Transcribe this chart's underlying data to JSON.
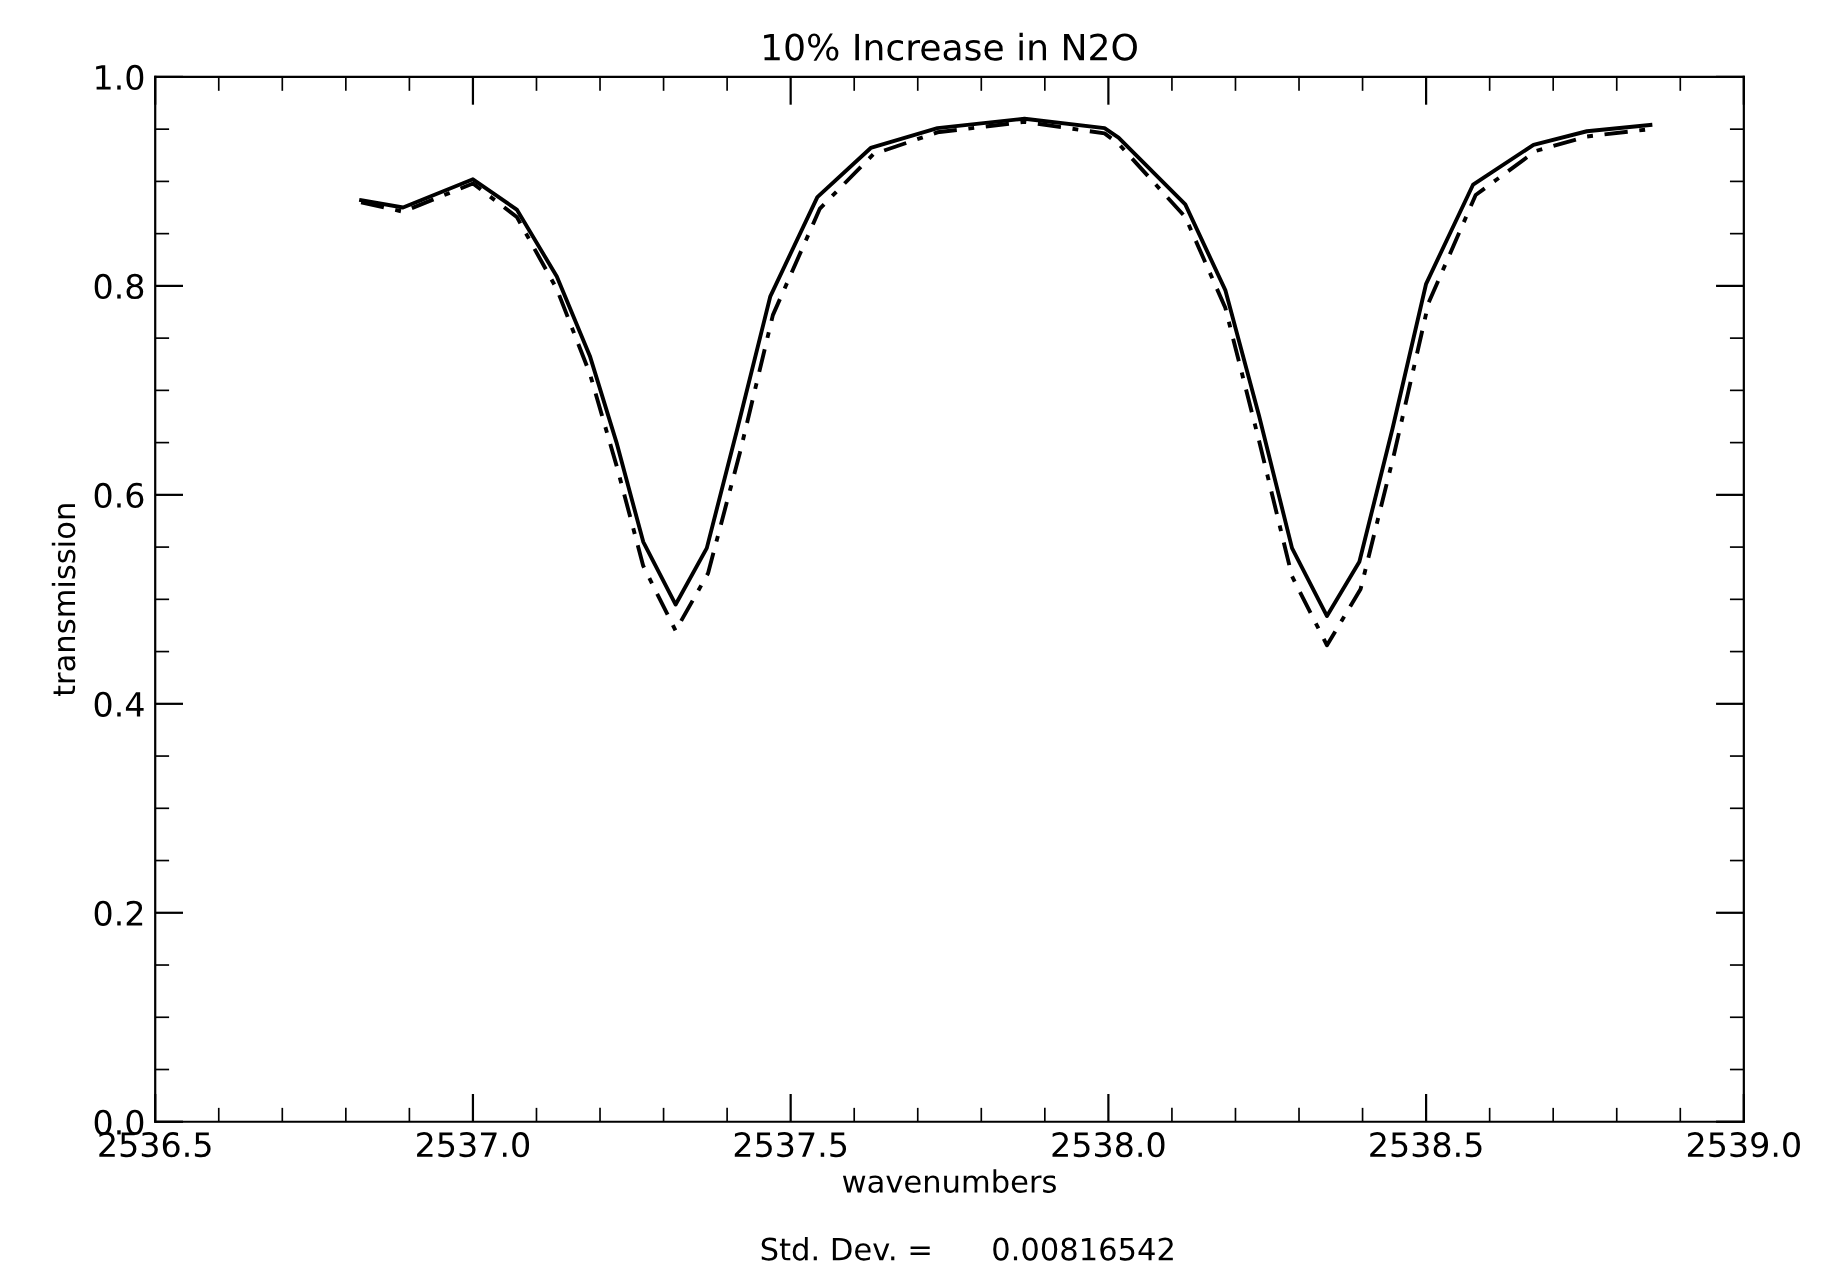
{
  "chart_data": {
    "type": "line",
    "title": "10% Increase in N2O",
    "xlabel": "wavenumbers",
    "ylabel": "transmission",
    "annotations": [
      "Std. Dev. =      0.00816542"
    ],
    "xlim": [
      2536.5,
      2539.0
    ],
    "xticks": [
      2536.5,
      {
        "value": 2537.0,
        "label": "2537.0"
      },
      2537.5,
      {
        "value": 2538.0,
        "label": "2538.0"
      },
      2538.5,
      {
        "value": 2539.0,
        "label": "2539.0"
      }
    ],
    "ylim": [
      0.0,
      1.0
    ],
    "yticks": [
      {
        "value": 0.0,
        "label": "0.0"
      },
      0.2,
      0.4,
      0.6,
      0.8,
      {
        "value": 1.0,
        "label": "1.0"
      }
    ],
    "grid": false,
    "legend": false,
    "marker": "none",
    "series": [
      {
        "color": "#000000",
        "line_style": "solid",
        "x": [
          2536.824,
          2536.89,
          2537.0,
          2537.069,
          2537.132,
          2537.184,
          2537.226,
          2537.268,
          2537.319,
          2537.368,
          2537.416,
          2537.468,
          2537.542,
          2537.626,
          2537.731,
          2537.868,
          2537.994,
          2538.016,
          2538.121,
          2538.184,
          2538.237,
          2538.289,
          2538.344,
          2538.395,
          2538.447,
          2538.5,
          2538.574,
          2538.669,
          2538.753,
          2538.853
        ],
        "values": [
          0.882,
          0.875,
          0.902,
          0.873,
          0.809,
          0.733,
          0.65,
          0.555,
          0.495,
          0.549,
          0.663,
          0.79,
          0.885,
          0.932,
          0.951,
          0.96,
          0.951,
          0.942,
          0.878,
          0.796,
          0.676,
          0.549,
          0.484,
          0.536,
          0.663,
          0.802,
          0.897,
          0.935,
          0.948,
          0.954
        ]
      },
      {
        "color": "#000000",
        "line_style": "dashed",
        "x": [
          2536.824,
          2536.89,
          2537.0,
          2537.069,
          2537.132,
          2537.184,
          2537.226,
          2537.268,
          2537.319,
          2537.37,
          2537.42,
          2537.472,
          2537.546,
          2537.63,
          2537.731,
          2537.868,
          2537.994,
          2538.016,
          2538.121,
          2538.184,
          2538.237,
          2538.289,
          2538.344,
          2538.397,
          2538.45,
          2538.504,
          2538.578,
          2538.672,
          2538.753,
          2538.853
        ],
        "values": [
          0.88,
          0.871,
          0.898,
          0.866,
          0.797,
          0.716,
          0.628,
          0.532,
          0.47,
          0.525,
          0.64,
          0.772,
          0.874,
          0.926,
          0.947,
          0.957,
          0.946,
          0.936,
          0.866,
          0.779,
          0.652,
          0.522,
          0.456,
          0.51,
          0.64,
          0.784,
          0.887,
          0.929,
          0.943,
          0.95
        ]
      }
    ]
  }
}
